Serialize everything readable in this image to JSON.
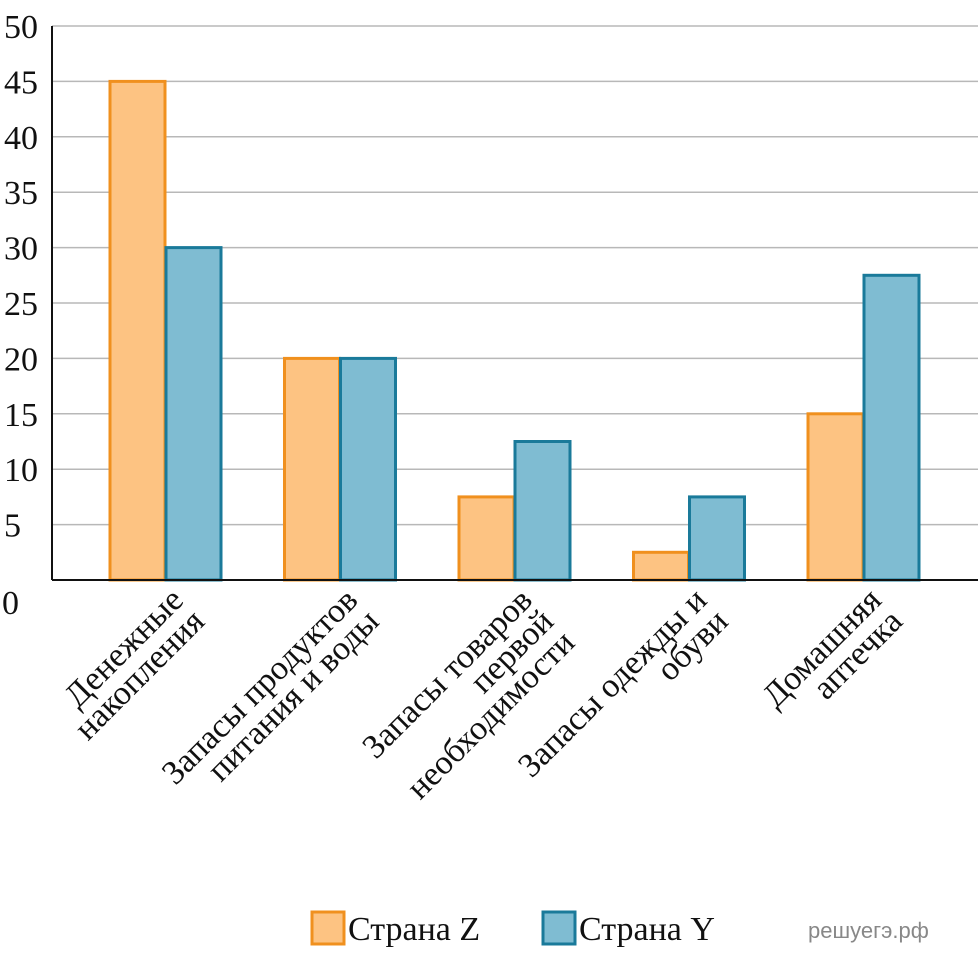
{
  "chart_data": {
    "type": "bar",
    "categories": [
      "Денежные\nнакопления",
      "Запасы продуктов\nпитания и воды",
      "Запасы товаров\nпервой\nнеобходимости",
      "Запасы одежды и\nобуви",
      "Домашняя\nаптечка"
    ],
    "series": [
      {
        "name": "Страна Z",
        "color": "#fdc382",
        "stroke": "#f0901e",
        "values": [
          45,
          20,
          7.5,
          2.5,
          15
        ]
      },
      {
        "name": "Страна Y",
        "color": "#7fbcd2",
        "stroke": "#1a7a9a",
        "values": [
          30,
          20,
          12.5,
          7.5,
          27.5
        ]
      }
    ],
    "ylim": [
      0,
      50
    ],
    "yticks": [
      0,
      5,
      10,
      15,
      20,
      25,
      30,
      35,
      40,
      45,
      50
    ],
    "grid": true,
    "watermark": "решуегэ.рф"
  }
}
